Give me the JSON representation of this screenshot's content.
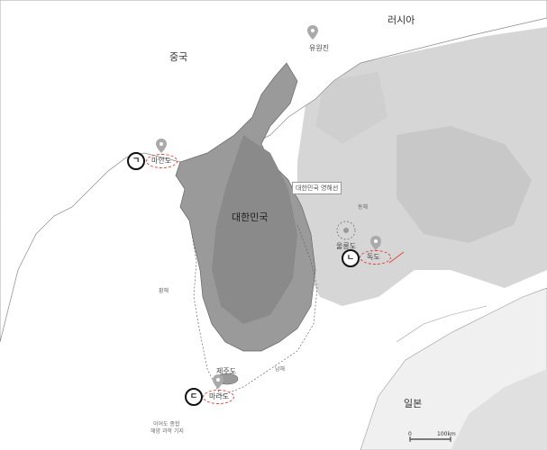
{
  "labels": {
    "china": "중국",
    "russia": "러시아",
    "japan": "일본",
    "korea": "대한민국",
    "uwonjin": "유원진",
    "maando": "마안도",
    "ulleungdo": "울릉도",
    "dokdo": "독도",
    "jejudo": "제주도",
    "marado": "마라도",
    "east_sea": "동해",
    "yellow_sea": "황해",
    "south_sea": "남해",
    "eez": "대한민국 영해선",
    "ieodo_line1": "이어도 종합",
    "ieodo_line2": "해양 과학 기지",
    "scale_zero": "0",
    "scale_km": "100km"
  },
  "markers": {
    "giyeok": "ㄱ",
    "nieun": "ㄴ",
    "digeut": "ㄷ"
  },
  "colors": {
    "accent_ring": "#e53935",
    "sea_deep": "#d4d4d4",
    "land": "#9a9a9a"
  }
}
